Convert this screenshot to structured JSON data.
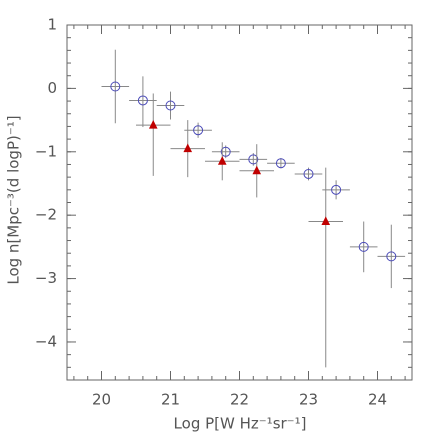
{
  "chart_data": {
    "type": "scatter",
    "xlabel": "Log P[W Hz⁻¹sr⁻¹]",
    "ylabel": "Log n[Mpc⁻³(d logP)⁻¹]",
    "xlim": [
      19.5,
      24.5
    ],
    "ylim": [
      -4.6,
      1
    ],
    "xticks": [
      20,
      21,
      22,
      23,
      24
    ],
    "yticks": [
      {
        "value": -4,
        "label": "−4"
      },
      {
        "value": -3,
        "label": "−3"
      },
      {
        "value": -2,
        "label": "−2"
      },
      {
        "value": -1,
        "label": "−1"
      },
      0,
      1
    ],
    "series": [
      {
        "marker": "circle",
        "color": "#4a4ab8",
        "x": [
          20.2,
          20.6,
          21.0,
          21.4,
          21.8,
          22.2,
          22.6,
          23.0,
          23.4,
          23.8,
          24.2
        ],
        "values": [
          0.03,
          -0.19,
          -0.27,
          -0.66,
          -1.0,
          -1.12,
          -1.18,
          -1.35,
          -1.6,
          -2.5,
          -2.65
        ],
        "xerr": [
          0.2,
          0.2,
          0.2,
          0.2,
          0.2,
          0.2,
          0.2,
          0.2,
          0.2,
          0.2,
          0.2
        ],
        "yerr_low": [
          0.58,
          0.42,
          0.22,
          0.12,
          0.1,
          0.1,
          0.08,
          0.1,
          0.15,
          0.4,
          0.5
        ],
        "yerr_high": [
          0.58,
          0.38,
          0.22,
          0.12,
          0.1,
          0.1,
          0.08,
          0.1,
          0.15,
          0.4,
          0.5
        ]
      },
      {
        "marker": "triangle",
        "color": "#c00000",
        "x": [
          20.75,
          21.25,
          21.75,
          22.25,
          23.25
        ],
        "values": [
          -0.58,
          -0.95,
          -1.15,
          -1.3,
          -2.1
        ],
        "xerr": [
          0.25,
          0.25,
          0.25,
          0.25,
          0.25
        ],
        "yerr_low": [
          0.8,
          0.45,
          0.3,
          0.42,
          2.3
        ],
        "yerr_high": [
          0.5,
          0.45,
          0.3,
          0.42,
          0.85
        ]
      }
    ]
  }
}
